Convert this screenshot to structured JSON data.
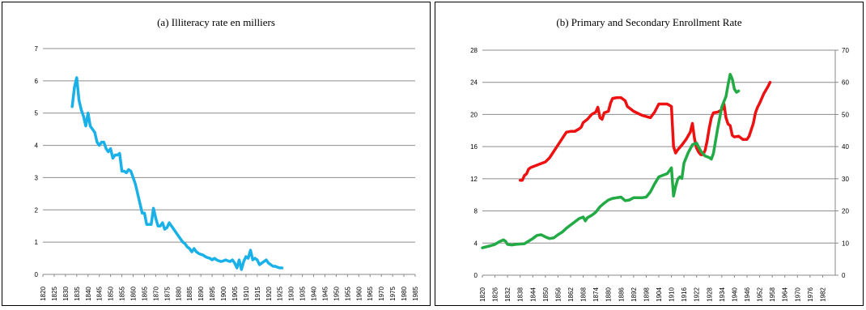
{
  "chart_data": [
    {
      "type": "line",
      "title": "(a) Illiteracy rate en milliers",
      "xlabel": "",
      "ylabel": "",
      "xlim": [
        1820,
        1985
      ],
      "ylim": [
        0,
        7
      ],
      "y_ticks": [
        "0",
        "1",
        "2",
        "3",
        "4",
        "5",
        "6",
        "7"
      ],
      "x_ticks": [
        "1820",
        "1825",
        "1830",
        "1835",
        "1840",
        "1845",
        "1850",
        "1855",
        "1860",
        "1865",
        "1870",
        "1875",
        "1880",
        "1885",
        "1890",
        "1895",
        "1900",
        "1905",
        "1910",
        "1915",
        "1920",
        "1925",
        "1930",
        "1935",
        "1940",
        "1945",
        "1950",
        "1955",
        "1960",
        "1965",
        "1970",
        "1975",
        "1980",
        "1985"
      ],
      "grid": true,
      "colors": {
        "series": "#1ab0e8"
      },
      "series": [
        {
          "color": "#1ab0e8",
          "points": [
            [
              1833,
              5.2
            ],
            [
              1834,
              5.8
            ],
            [
              1835,
              6.1
            ],
            [
              1836,
              5.4
            ],
            [
              1837,
              5.1
            ],
            [
              1838,
              4.9
            ],
            [
              1839,
              4.6
            ],
            [
              1840,
              5.0
            ],
            [
              1841,
              4.6
            ],
            [
              1842,
              4.5
            ],
            [
              1843,
              4.4
            ],
            [
              1844,
              4.1
            ],
            [
              1845,
              4.0
            ],
            [
              1846,
              4.1
            ],
            [
              1847,
              4.1
            ],
            [
              1848,
              3.9
            ],
            [
              1849,
              3.8
            ],
            [
              1850,
              3.9
            ],
            [
              1851,
              3.6
            ],
            [
              1852,
              3.7
            ],
            [
              1853,
              3.7
            ],
            [
              1854,
              3.75
            ],
            [
              1855,
              3.2
            ],
            [
              1856,
              3.2
            ],
            [
              1857,
              3.15
            ],
            [
              1858,
              3.25
            ],
            [
              1859,
              3.2
            ],
            [
              1860,
              3.0
            ],
            [
              1861,
              2.8
            ],
            [
              1862,
              2.5
            ],
            [
              1863,
              2.2
            ],
            [
              1864,
              1.9
            ],
            [
              1865,
              1.9
            ],
            [
              1866,
              1.55
            ],
            [
              1867,
              1.55
            ],
            [
              1868,
              1.55
            ],
            [
              1869,
              2.05
            ],
            [
              1870,
              1.75
            ],
            [
              1871,
              1.5
            ],
            [
              1872,
              1.5
            ],
            [
              1873,
              1.6
            ],
            [
              1874,
              1.4
            ],
            [
              1875,
              1.45
            ],
            [
              1876,
              1.6
            ],
            [
              1877,
              1.5
            ],
            [
              1878,
              1.4
            ],
            [
              1879,
              1.3
            ],
            [
              1880,
              1.2
            ],
            [
              1881,
              1.1
            ],
            [
              1882,
              1.0
            ],
            [
              1883,
              0.95
            ],
            [
              1884,
              0.85
            ],
            [
              1885,
              0.8
            ],
            [
              1886,
              0.7
            ],
            [
              1887,
              0.8
            ],
            [
              1888,
              0.7
            ],
            [
              1889,
              0.65
            ],
            [
              1890,
              0.62
            ],
            [
              1891,
              0.6
            ],
            [
              1892,
              0.55
            ],
            [
              1893,
              0.52
            ],
            [
              1894,
              0.5
            ],
            [
              1895,
              0.45
            ],
            [
              1896,
              0.5
            ],
            [
              1897,
              0.45
            ],
            [
              1898,
              0.42
            ],
            [
              1899,
              0.4
            ],
            [
              1900,
              0.42
            ],
            [
              1901,
              0.45
            ],
            [
              1902,
              0.42
            ],
            [
              1903,
              0.4
            ],
            [
              1904,
              0.45
            ],
            [
              1905,
              0.35
            ],
            [
              1906,
              0.2
            ],
            [
              1907,
              0.45
            ],
            [
              1908,
              0.15
            ],
            [
              1909,
              0.4
            ],
            [
              1910,
              0.55
            ],
            [
              1911,
              0.5
            ],
            [
              1912,
              0.75
            ],
            [
              1913,
              0.45
            ],
            [
              1914,
              0.5
            ],
            [
              1915,
              0.45
            ],
            [
              1916,
              0.3
            ],
            [
              1917,
              0.35
            ],
            [
              1918,
              0.4
            ],
            [
              1919,
              0.45
            ],
            [
              1920,
              0.35
            ],
            [
              1921,
              0.3
            ],
            [
              1922,
              0.25
            ],
            [
              1923,
              0.25
            ],
            [
              1924,
              0.22
            ],
            [
              1925,
              0.2
            ],
            [
              1926,
              0.2
            ]
          ]
        }
      ]
    },
    {
      "type": "line",
      "title": "(b) Primary and Secondary Enrollment Rate",
      "xlabel": "",
      "ylabel": "",
      "xlim": [
        1820,
        1988
      ],
      "ylim": [
        0,
        28
      ],
      "y2lim": [
        0,
        70
      ],
      "y_ticks": [
        "0",
        "4",
        "8",
        "12",
        "16",
        "20",
        "24",
        "28"
      ],
      "y2_ticks": [
        "0",
        "10",
        "20",
        "30",
        "40",
        "50",
        "60",
        "70"
      ],
      "x_ticks": [
        "1820",
        "1826",
        "1832",
        "1838",
        "1844",
        "1850",
        "1856",
        "1862",
        "1868",
        "1874",
        "1880",
        "1886",
        "1892",
        "1898",
        "1904",
        "1910",
        "1916",
        "1922",
        "1928",
        "1934",
        "1940",
        "1946",
        "1952",
        "1958",
        "1964",
        "1970",
        "1976",
        "1982"
      ],
      "grid": true,
      "colors": {
        "red": "#ee1111",
        "green": "#22aa44"
      },
      "series": [
        {
          "color": "#ee1111",
          "axis": "left",
          "points": [
            [
              1838,
              11.8
            ],
            [
              1839,
              11.8
            ],
            [
              1840,
              12.4
            ],
            [
              1841,
              12.6
            ],
            [
              1842,
              13.2
            ],
            [
              1843,
              13.4
            ],
            [
              1846,
              13.7
            ],
            [
              1850,
              14.1
            ],
            [
              1852,
              14.6
            ],
            [
              1856,
              16.2
            ],
            [
              1860,
              17.8
            ],
            [
              1862,
              17.9
            ],
            [
              1864,
              17.9
            ],
            [
              1866,
              18.2
            ],
            [
              1867,
              18.4
            ],
            [
              1868,
              19.0
            ],
            [
              1870,
              19.4
            ],
            [
              1872,
              20.0
            ],
            [
              1874,
              20.3
            ],
            [
              1875,
              20.9
            ],
            [
              1876,
              19.6
            ],
            [
              1877,
              19.4
            ],
            [
              1878,
              20.2
            ],
            [
              1880,
              20.4
            ],
            [
              1881,
              21.4
            ],
            [
              1882,
              22.0
            ],
            [
              1884,
              22.1
            ],
            [
              1886,
              22.1
            ],
            [
              1888,
              21.7
            ],
            [
              1889,
              21.0
            ],
            [
              1892,
              20.4
            ],
            [
              1896,
              19.9
            ],
            [
              1900,
              19.6
            ],
            [
              1902,
              20.3
            ],
            [
              1904,
              21.3
            ],
            [
              1908,
              21.3
            ],
            [
              1910,
              21.0
            ],
            [
              1911,
              16.0
            ],
            [
              1912,
              15.2
            ],
            [
              1913,
              15.6
            ],
            [
              1915,
              16.2
            ],
            [
              1917,
              16.9
            ],
            [
              1919,
              17.8
            ],
            [
              1920,
              18.9
            ],
            [
              1921,
              17.0
            ],
            [
              1922,
              15.8
            ],
            [
              1923,
              15.3
            ],
            [
              1924,
              15.0
            ],
            [
              1925,
              15.0
            ],
            [
              1926,
              15.5
            ],
            [
              1927,
              16.7
            ],
            [
              1928,
              18.3
            ],
            [
              1929,
              19.6
            ],
            [
              1930,
              20.2
            ],
            [
              1932,
              20.3
            ],
            [
              1934,
              20.6
            ],
            [
              1935,
              21.3
            ],
            [
              1936,
              19.6
            ],
            [
              1937,
              18.8
            ],
            [
              1938,
              18.6
            ],
            [
              1939,
              17.4
            ],
            [
              1940,
              17.2
            ],
            [
              1942,
              17.3
            ],
            [
              1944,
              16.9
            ],
            [
              1946,
              16.9
            ],
            [
              1947,
              17.3
            ],
            [
              1949,
              18.9
            ],
            [
              1950,
              20.2
            ],
            [
              1951,
              20.9
            ],
            [
              1952,
              21.4
            ],
            [
              1954,
              22.6
            ],
            [
              1956,
              23.5
            ],
            [
              1957,
              24.0
            ]
          ]
        },
        {
          "color": "#22aa44",
          "axis": "right",
          "points": [
            [
              1820,
              8.5
            ],
            [
              1824,
              9.2
            ],
            [
              1826,
              9.6
            ],
            [
              1828,
              10.4
            ],
            [
              1830,
              11.0
            ],
            [
              1831,
              10.6
            ],
            [
              1832,
              9.6
            ],
            [
              1834,
              9.4
            ],
            [
              1836,
              9.6
            ],
            [
              1840,
              9.8
            ],
            [
              1844,
              11.4
            ],
            [
              1846,
              12.4
            ],
            [
              1848,
              12.6
            ],
            [
              1850,
              11.9
            ],
            [
              1852,
              11.4
            ],
            [
              1854,
              11.6
            ],
            [
              1856,
              12.6
            ],
            [
              1858,
              13.4
            ],
            [
              1860,
              14.6
            ],
            [
              1862,
              15.6
            ],
            [
              1864,
              16.6
            ],
            [
              1866,
              17.6
            ],
            [
              1868,
              18.1
            ],
            [
              1869,
              16.9
            ],
            [
              1870,
              17.9
            ],
            [
              1872,
              18.6
            ],
            [
              1874,
              19.6
            ],
            [
              1876,
              21.3
            ],
            [
              1878,
              22.4
            ],
            [
              1880,
              23.4
            ],
            [
              1882,
              23.9
            ],
            [
              1886,
              24.3
            ],
            [
              1888,
              23.2
            ],
            [
              1890,
              23.4
            ],
            [
              1892,
              24.1
            ],
            [
              1894,
              24.1
            ],
            [
              1896,
              24.1
            ],
            [
              1898,
              24.3
            ],
            [
              1900,
              25.9
            ],
            [
              1902,
              28.4
            ],
            [
              1904,
              30.6
            ],
            [
              1906,
              31.1
            ],
            [
              1908,
              31.6
            ],
            [
              1910,
              33.4
            ],
            [
              1911,
              24.6
            ],
            [
              1912,
              27.6
            ],
            [
              1913,
              29.9
            ],
            [
              1914,
              30.6
            ],
            [
              1915,
              30.1
            ],
            [
              1916,
              34.9
            ],
            [
              1918,
              38.1
            ],
            [
              1920,
              40.6
            ],
            [
              1922,
              41.1
            ],
            [
              1924,
              38.6
            ],
            [
              1926,
              37.1
            ],
            [
              1928,
              36.6
            ],
            [
              1929,
              36.1
            ],
            [
              1930,
              37.9
            ],
            [
              1932,
              45.6
            ],
            [
              1934,
              52.4
            ],
            [
              1936,
              55.6
            ],
            [
              1937,
              59.3
            ],
            [
              1938,
              62.5
            ],
            [
              1939,
              61.0
            ],
            [
              1940,
              57.9
            ],
            [
              1941,
              56.9
            ],
            [
              1942,
              57.3
            ]
          ]
        }
      ]
    }
  ]
}
